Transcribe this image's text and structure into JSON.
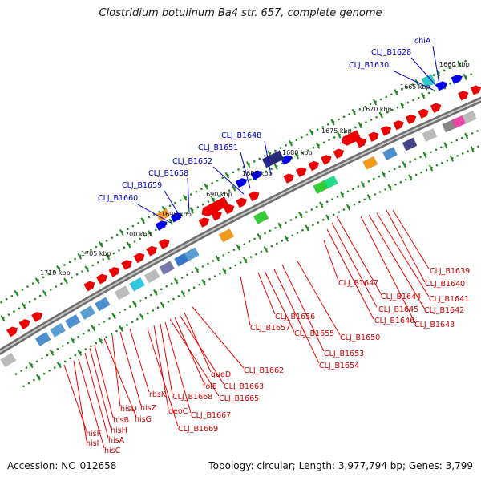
{
  "header": {
    "title": "Clostridium botulinum Ba4 str. 657, complete genome"
  },
  "footer": {
    "accession": "Accession: NC_012658",
    "summary": "Topology: circular; Length: 3,977,794 bp; Genes: 3,799"
  },
  "scale_ticks": [
    {
      "label": "1660 kbp"
    },
    {
      "label": "1665 kbp"
    },
    {
      "label": "1670 kbp"
    },
    {
      "label": "1675 kbp"
    },
    {
      "label": "1680 kbp"
    },
    {
      "label": "1685 kbp"
    },
    {
      "label": "1690 kbp"
    },
    {
      "label": "1695 kbp"
    },
    {
      "label": "1700 kbp"
    },
    {
      "label": "1705 kbp"
    },
    {
      "label": "1710 kbp"
    }
  ],
  "blue_labels": [
    {
      "text": "chiA"
    },
    {
      "text": "CLJ_B1628"
    },
    {
      "text": "CLJ_B1630"
    },
    {
      "text": "CLJ_B1648"
    },
    {
      "text": "CLJ_B1651"
    },
    {
      "text": "CLJ_B1652"
    },
    {
      "text": "CLJ_B1658"
    },
    {
      "text": "CLJ_B1659"
    },
    {
      "text": "CLJ_B1660"
    }
  ],
  "red_labels": [
    {
      "text": "CLJ_B1639"
    },
    {
      "text": "CLJ_B1640"
    },
    {
      "text": "CLJ_B1641"
    },
    {
      "text": "CLJ_B1642"
    },
    {
      "text": "CLJ_B1643"
    },
    {
      "text": "CLJ_B1644"
    },
    {
      "text": "CLJ_B1645"
    },
    {
      "text": "CLJ_B1646"
    },
    {
      "text": "CLJ_B1647"
    },
    {
      "text": "CLJ_B1650"
    },
    {
      "text": "CLJ_B1653"
    },
    {
      "text": "CLJ_B1654"
    },
    {
      "text": "CLJ_B1655"
    },
    {
      "text": "CLJ_B1656"
    },
    {
      "text": "CLJ_B1657"
    },
    {
      "text": "CLJ_B1662"
    },
    {
      "text": "queD"
    },
    {
      "text": "CLJ_B1663"
    },
    {
      "text": "folE"
    },
    {
      "text": "CLJ_B1665"
    },
    {
      "text": "rbsK"
    },
    {
      "text": "CLJ_B1668"
    },
    {
      "text": "hisZ"
    },
    {
      "text": "deoC"
    },
    {
      "text": "CLJ_B1667"
    },
    {
      "text": "hisD"
    },
    {
      "text": "hisG"
    },
    {
      "text": "CLJ_B1669"
    },
    {
      "text": "hisB"
    },
    {
      "text": "hisH"
    },
    {
      "text": "hisA"
    },
    {
      "text": "hisF"
    },
    {
      "text": "hisI"
    },
    {
      "text": "hisC"
    }
  ],
  "colors": {
    "backbone": "#8a8a8a",
    "forward_gene": "#ee0000",
    "reverse_gene": "#0000ee",
    "tick_mark": "#228822",
    "blue_label": "#0000cc",
    "red_label": "#cc0000"
  }
}
